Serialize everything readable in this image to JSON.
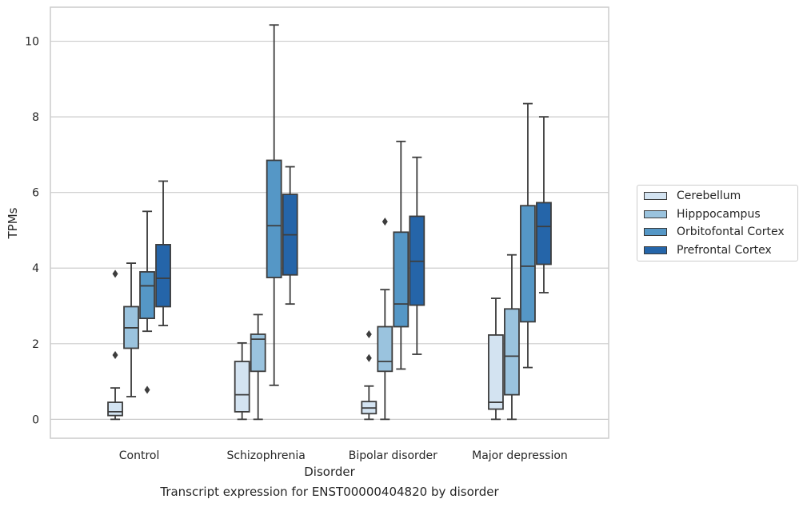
{
  "caption": "Transcript expression for ENST00000404820 by disorder",
  "chart_data": {
    "type": "boxplot",
    "xlabel": "Disorder",
    "ylabel": "TPMs",
    "ylim": [
      -0.5,
      10.9
    ],
    "yticks": [
      0,
      2,
      4,
      6,
      8,
      10
    ],
    "grid": "horizontal",
    "legend_position": "right",
    "categories": [
      "Control",
      "Schizophrenia",
      "Bipolar disorder",
      "Major depression"
    ],
    "series": [
      {
        "name": "Cerebellum",
        "color": "#d3e3f1",
        "boxes": [
          {
            "min": 0.0,
            "q1": 0.1,
            "median": 0.2,
            "q3": 0.45,
            "max": 0.83,
            "outliers": [
              3.85,
              1.7
            ]
          },
          {
            "min": 0.0,
            "q1": 0.2,
            "median": 0.65,
            "q3": 1.53,
            "max": 2.02,
            "outliers": []
          },
          {
            "min": 0.0,
            "q1": 0.15,
            "median": 0.3,
            "q3": 0.47,
            "max": 0.88,
            "outliers": [
              2.25,
              1.62
            ]
          },
          {
            "min": 0.0,
            "q1": 0.27,
            "median": 0.45,
            "q3": 2.23,
            "max": 3.2,
            "outliers": []
          }
        ]
      },
      {
        "name": "Hipppocampus",
        "color": "#9ac3de",
        "boxes": [
          {
            "min": 0.6,
            "q1": 1.88,
            "median": 2.42,
            "q3": 2.98,
            "max": 4.13,
            "outliers": []
          },
          {
            "min": 0.0,
            "q1": 1.27,
            "median": 2.12,
            "q3": 2.25,
            "max": 2.77,
            "outliers": []
          },
          {
            "min": 0.0,
            "q1": 1.27,
            "median": 1.53,
            "q3": 2.45,
            "max": 3.43,
            "outliers": [
              5.23
            ]
          },
          {
            "min": 0.0,
            "q1": 0.65,
            "median": 1.67,
            "q3": 2.92,
            "max": 4.35,
            "outliers": []
          }
        ]
      },
      {
        "name": "Orbitofontal Cortex",
        "color": "#5597c6",
        "boxes": [
          {
            "min": 2.33,
            "q1": 2.67,
            "median": 3.53,
            "q3": 3.9,
            "max": 5.5,
            "outliers": [
              0.78
            ]
          },
          {
            "min": 0.9,
            "q1": 3.75,
            "median": 5.12,
            "q3": 6.85,
            "max": 10.43,
            "outliers": []
          },
          {
            "min": 1.33,
            "q1": 2.45,
            "median": 3.05,
            "q3": 4.95,
            "max": 7.35,
            "outliers": []
          },
          {
            "min": 1.37,
            "q1": 2.58,
            "median": 4.05,
            "q3": 5.65,
            "max": 8.35,
            "outliers": []
          }
        ]
      },
      {
        "name": "Prefrontal Cortex",
        "color": "#2565a9",
        "boxes": [
          {
            "min": 2.48,
            "q1": 2.98,
            "median": 3.73,
            "q3": 4.62,
            "max": 6.3,
            "outliers": []
          },
          {
            "min": 3.05,
            "q1": 3.82,
            "median": 4.88,
            "q3": 5.95,
            "max": 6.68,
            "outliers": []
          },
          {
            "min": 1.72,
            "q1": 3.02,
            "median": 4.18,
            "q3": 5.37,
            "max": 6.93,
            "outliers": []
          },
          {
            "min": 3.35,
            "q1": 4.1,
            "median": 5.1,
            "q3": 5.73,
            "max": 8.0,
            "outliers": []
          }
        ]
      }
    ]
  }
}
